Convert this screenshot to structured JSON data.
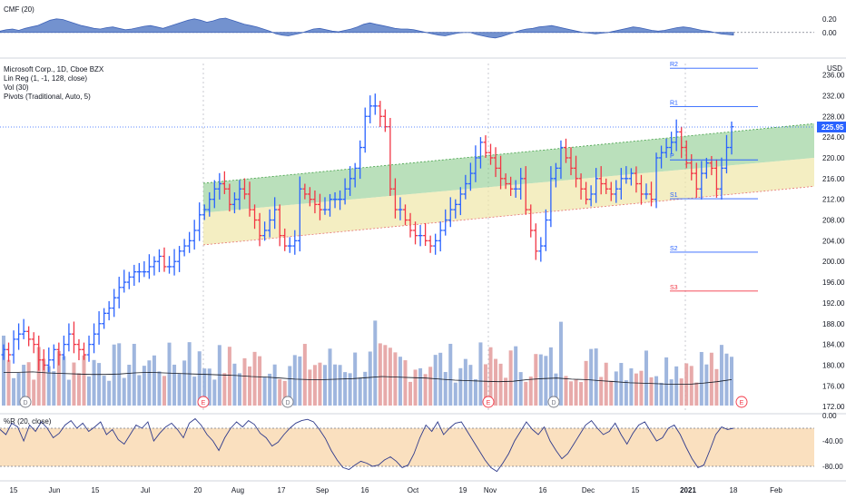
{
  "chart_data": [
    {
      "type": "line",
      "panel": "cmf",
      "title": "CMF (20)",
      "yticks": [
        "0.20",
        "0.00"
      ],
      "ylim": [
        -0.35,
        0.45
      ],
      "series": [
        {
          "name": "CMF (20)",
          "color": "#5a7fc7",
          "values": [
            0.02,
            0.04,
            0.05,
            0.03,
            0.06,
            0.08,
            0.1,
            0.14,
            0.18,
            0.2,
            0.19,
            0.16,
            0.13,
            0.1,
            0.08,
            0.06,
            0.05,
            0.07,
            0.08,
            0.06,
            0.04,
            0.05,
            0.07,
            0.09,
            0.1,
            0.08,
            0.06,
            0.09,
            0.12,
            0.15,
            0.18,
            0.2,
            0.18,
            0.15,
            0.17,
            0.2,
            0.21,
            0.18,
            0.15,
            0.12,
            0.1,
            0.08,
            0.05,
            0.02,
            -0.02,
            -0.04,
            -0.05,
            -0.03,
            -0.01,
            0.02,
            0.05,
            0.06,
            0.04,
            0.02,
            0.01,
            0.03,
            0.05,
            0.08,
            0.12,
            0.14,
            0.12,
            0.1,
            0.08,
            0.06,
            0.05,
            0.05,
            0.04,
            0.02,
            0.0,
            -0.02,
            -0.04,
            -0.05,
            -0.03,
            -0.01,
            0.0,
            0.0,
            -0.03,
            -0.05,
            -0.07,
            -0.08,
            -0.06,
            -0.03,
            0.0,
            0.03,
            0.05,
            0.06,
            0.08,
            0.09,
            0.1,
            0.08,
            0.06,
            0.04,
            0.02,
            0.0,
            -0.01,
            -0.02,
            -0.01,
            0.0,
            0.02,
            0.04,
            0.06,
            0.08,
            0.07,
            0.05,
            0.03,
            0.02,
            0.03,
            0.05,
            0.07,
            0.08,
            0.07,
            0.05,
            0.03,
            0.02,
            0.0,
            -0.02,
            -0.03,
            -0.04
          ]
        }
      ]
    },
    {
      "type": "ohlc",
      "panel": "price",
      "title": "Microsoft Corp., 1D, Cboe BZX",
      "indicators": [
        "Lin Reg (1, -1, 128, close)",
        "Vol (30)",
        "Pivots (Traditional, Auto, 5)"
      ],
      "currency": "USD",
      "yticks": [
        "236.00",
        "232.00",
        "228.00",
        "224.00",
        "220.00",
        "216.00",
        "212.00",
        "208.00",
        "204.00",
        "200.00",
        "196.00",
        "192.00",
        "188.00",
        "184.00",
        "180.00",
        "176.00",
        "172.00"
      ],
      "ylim": [
        170.8,
        238.2
      ],
      "last_price": "225.95",
      "closes": [
        183,
        182,
        185,
        186,
        186.5,
        185,
        184,
        181,
        180,
        181,
        183,
        182,
        184,
        186,
        184,
        183,
        182,
        184,
        186,
        188,
        190,
        191,
        193,
        195,
        196,
        197,
        198,
        198,
        198,
        199,
        200,
        201,
        199,
        199,
        200,
        202,
        203,
        204,
        206,
        209,
        210,
        212,
        214,
        215,
        214,
        211,
        212,
        214,
        213,
        210,
        208,
        205,
        206,
        208,
        210,
        205,
        203,
        203,
        204,
        214,
        213,
        212,
        211,
        210,
        210,
        212,
        212,
        212,
        214,
        216,
        218,
        222,
        228,
        230,
        230,
        228,
        226,
        214,
        210,
        210,
        208,
        206,
        205,
        205,
        204,
        203,
        204,
        206,
        208,
        210,
        211,
        213,
        215,
        217,
        220,
        223,
        221,
        220,
        218,
        216,
        215,
        214,
        214,
        216,
        210,
        206,
        202,
        203,
        208,
        216,
        218,
        222,
        220,
        218,
        216,
        214,
        212,
        213,
        216,
        215,
        214,
        213,
        214,
        216,
        216,
        217,
        215,
        213,
        213,
        212,
        220,
        221,
        222,
        223,
        225,
        222,
        219,
        217,
        214,
        217,
        219,
        218,
        214,
        218,
        222,
        226
      ],
      "pivots": [
        {
          "label": "R2",
          "value": 237.3,
          "color": "#2962ff"
        },
        {
          "label": "R1",
          "value": 229.9,
          "color": "#2962ff"
        },
        {
          "label": "P",
          "value": 219.6,
          "color": "#2962ff"
        },
        {
          "label": "S1",
          "value": 212.1,
          "color": "#2962ff"
        },
        {
          "label": "S2",
          "value": 201.8,
          "color": "#2962ff"
        },
        {
          "label": "S3",
          "value": 194.3,
          "color": "#f23645"
        }
      ],
      "regression_channel": {
        "start": 215.1,
        "end": 226.6,
        "mid_start": 209.4,
        "mid_end": 220.0,
        "low_start": 203.2,
        "low_end": 214.5
      },
      "volume_ma": [
        178.6,
        178.6,
        178.7,
        178.5,
        178.4,
        178.3,
        178.2,
        178.2,
        178.3,
        178.5,
        178.6,
        178.5,
        178.4,
        178.3,
        178.2,
        178.1,
        178.0,
        177.8,
        177.7,
        177.5,
        177.3,
        177.2,
        177.2,
        177.3,
        177.4,
        177.6,
        177.8,
        177.7,
        177.6,
        177.5,
        177.3,
        177.1,
        177.0,
        176.9,
        176.8,
        176.9,
        177.2,
        177.4,
        177.5,
        177.3,
        177.2,
        177.0,
        176.8,
        176.6,
        176.5,
        176.4,
        176.3,
        176.3,
        176.5,
        176.8,
        177.2
      ],
      "x_ticks": [
        "15",
        "Jun",
        "15",
        "Jul",
        "20",
        "Aug",
        "17",
        "Sep",
        "16",
        "Oct",
        "19",
        "Nov",
        "16",
        "Dec",
        "15",
        "2021",
        "18",
        "Feb"
      ],
      "event_markers": [
        {
          "label": "D",
          "color": "#787b86"
        },
        {
          "label": "E",
          "color": "#f23645"
        },
        {
          "label": "D",
          "color": "#787b86"
        },
        {
          "label": "E",
          "color": "#f23645"
        },
        {
          "label": "D",
          "color": "#787b86"
        },
        {
          "label": "E",
          "color": "#f23645"
        }
      ],
      "up_color": "#2962ff",
      "down_color": "#f23645"
    },
    {
      "type": "line",
      "panel": "williams_r",
      "title": "%R (20, close)",
      "yticks": [
        "0.00",
        "-40.00",
        "-80.00"
      ],
      "ylim": [
        -100,
        0
      ],
      "band": [
        -80,
        -20
      ],
      "series": [
        {
          "name": "%R (20, close)",
          "color": "#2f3b8c",
          "values": [
            -22,
            -30,
            -12,
            -18,
            -40,
            -15,
            -25,
            -10,
            -20,
            -35,
            -28,
            -15,
            -8,
            -20,
            -12,
            -25,
            -18,
            -10,
            -30,
            -22,
            -38,
            -45,
            -30,
            -15,
            -20,
            -10,
            -40,
            -28,
            -18,
            -12,
            -22,
            -35,
            -12,
            -5,
            -15,
            -30,
            -40,
            -55,
            -35,
            -20,
            -10,
            -18,
            -8,
            -14,
            -28,
            -35,
            -48,
            -42,
            -30,
            -20,
            -12,
            -8,
            -6,
            -10,
            -22,
            -36,
            -55,
            -70,
            -82,
            -85,
            -78,
            -72,
            -75,
            -80,
            -78,
            -70,
            -65,
            -72,
            -82,
            -78,
            -60,
            -35,
            -15,
            -25,
            -10,
            -30,
            -20,
            -12,
            -10,
            -25,
            -40,
            -55,
            -70,
            -82,
            -88,
            -75,
            -60,
            -40,
            -25,
            -10,
            -22,
            -30,
            -18,
            -40,
            -55,
            -68,
            -60,
            -45,
            -30,
            -15,
            -8,
            -20,
            -30,
            -25,
            -12,
            -30,
            -45,
            -28,
            -15,
            -10,
            -25,
            -40,
            -35,
            -20,
            -15,
            -30,
            -50,
            -68,
            -82,
            -78,
            -55,
            -30,
            -18,
            -22,
            -20
          ]
        }
      ]
    }
  ]
}
